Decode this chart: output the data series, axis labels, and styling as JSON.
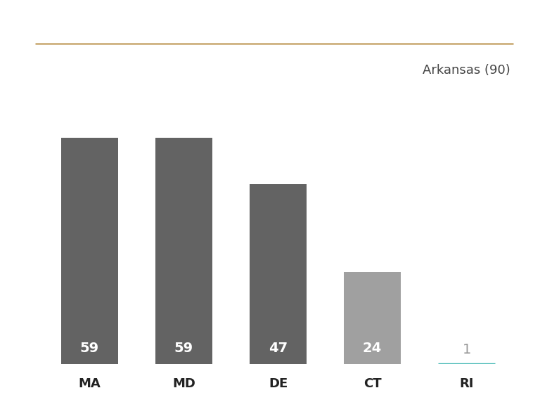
{
  "categories": [
    "MA",
    "MD",
    "DE",
    "CT",
    "RI"
  ],
  "values": [
    59,
    59,
    47,
    24,
    1
  ],
  "bar_colors": [
    "#636363",
    "#636363",
    "#636363",
    "#a0a0a0",
    "#ffffff"
  ],
  "label_colors": [
    "#ffffff",
    "#ffffff",
    "#ffffff",
    "#ffffff",
    "#999999"
  ],
  "annotation": "Arkansas (90)",
  "annotation_color": "#444444",
  "top_line_color": "#c8a870",
  "teal_line_color": "#3ab5b0",
  "background_color": "#ffffff",
  "bar_width": 0.6,
  "ylim": [
    0,
    68
  ],
  "value_fontsize": 14,
  "label_fontsize": 13,
  "annotation_fontsize": 13
}
